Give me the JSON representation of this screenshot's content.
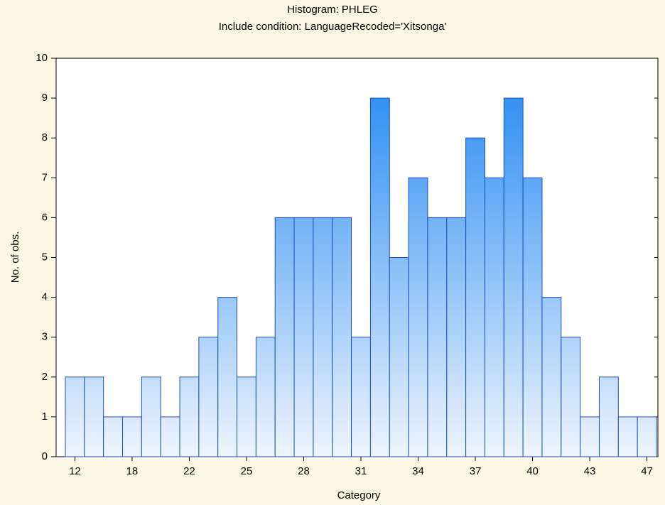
{
  "chart_data": {
    "type": "bar",
    "title": "Histogram: PHLEG",
    "subtitle": "Include condition: LanguageRecoded='Xitsonga'",
    "x_label": "Category",
    "y_label": "No. of obs.",
    "categories": [
      "12",
      null,
      null,
      "18",
      null,
      null,
      "22",
      null,
      null,
      "25",
      null,
      null,
      "28",
      null,
      null,
      "31",
      null,
      null,
      "34",
      null,
      null,
      "37",
      null,
      null,
      "40",
      null,
      null,
      "43",
      null,
      null,
      "47"
    ],
    "values": [
      2,
      2,
      1,
      1,
      2,
      1,
      2,
      3,
      4,
      2,
      3,
      6,
      6,
      6,
      6,
      3,
      9,
      5,
      7,
      6,
      6,
      8,
      7,
      9,
      7,
      4,
      3,
      1,
      2,
      1,
      1
    ],
    "color": "#1e86f2",
    "edgecolor": "#1f4fb8",
    "ylim": [
      0,
      10
    ],
    "yticks": [
      0,
      1,
      2,
      3,
      4,
      5,
      6,
      7,
      8,
      9,
      10
    ],
    "grid": false
  }
}
